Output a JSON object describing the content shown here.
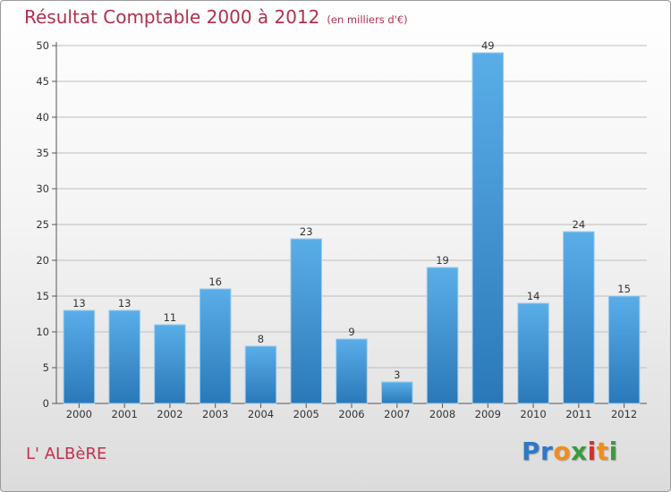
{
  "chart_data": {
    "type": "bar",
    "title": "Résultat Comptable 2000 à 2012",
    "subtitle": "(en milliers d'€)",
    "categories": [
      "2000",
      "2001",
      "2002",
      "2003",
      "2004",
      "2005",
      "2006",
      "2007",
      "2008",
      "2009",
      "2010",
      "2011",
      "2012"
    ],
    "values": [
      13,
      13,
      11,
      16,
      8,
      23,
      9,
      3,
      19,
      49,
      14,
      24,
      15
    ],
    "ylim": [
      0,
      50
    ],
    "yticks": [
      0,
      5,
      10,
      15,
      20,
      25,
      30,
      35,
      40,
      45,
      50
    ],
    "grid": true,
    "legend": "none",
    "colors": {
      "bar_top": "#5aaee8",
      "bar_bottom": "#2a78b8",
      "grid": "#bdbdbd"
    }
  },
  "location_label": "L' ALBèRE",
  "brand": {
    "letters": [
      "P",
      "r",
      "o",
      "x",
      "i",
      "t",
      "i"
    ]
  }
}
